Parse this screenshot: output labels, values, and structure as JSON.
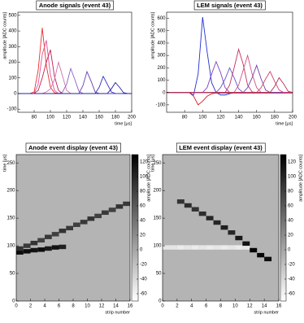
{
  "chart_data": [
    {
      "type": "line",
      "title": "Anode signals (event 43)",
      "xlabel": "time [μs]",
      "ylabel": "amplitude [ADC counts]",
      "x": [
        60,
        65,
        70,
        75,
        80,
        85,
        90,
        95,
        100,
        105,
        110,
        115,
        120,
        125,
        130,
        135,
        140,
        145,
        150,
        155,
        160,
        165,
        170,
        175,
        180,
        185,
        190,
        195,
        200
      ],
      "series": [
        {
          "color": "#e8302a",
          "values": [
            0,
            0,
            0,
            0,
            10,
            150,
            420,
            180,
            40,
            5,
            0,
            0,
            0,
            0,
            0,
            0,
            0,
            0,
            0,
            0,
            0,
            0,
            0,
            0,
            0,
            0,
            0,
            0,
            0
          ]
        },
        {
          "color": "#e0509a",
          "values": [
            0,
            0,
            0,
            0,
            0,
            60,
            250,
            340,
            120,
            20,
            0,
            0,
            0,
            0,
            0,
            0,
            0,
            0,
            0,
            0,
            0,
            0,
            0,
            0,
            0,
            0,
            0,
            0,
            0
          ]
        },
        {
          "color": "#c02050",
          "values": [
            0,
            0,
            0,
            0,
            0,
            20,
            100,
            200,
            280,
            110,
            20,
            0,
            0,
            0,
            0,
            0,
            0,
            0,
            0,
            0,
            0,
            0,
            0,
            0,
            0,
            0,
            0,
            0,
            0
          ]
        },
        {
          "color": "#d070b0",
          "values": [
            0,
            0,
            0,
            0,
            0,
            0,
            0,
            10,
            30,
            90,
            200,
            110,
            20,
            0,
            0,
            0,
            0,
            0,
            0,
            0,
            0,
            0,
            0,
            0,
            0,
            0,
            0,
            0,
            0
          ]
        },
        {
          "color": "#9060c0",
          "values": [
            0,
            0,
            0,
            0,
            0,
            0,
            0,
            0,
            0,
            0,
            0,
            10,
            60,
            160,
            90,
            15,
            0,
            0,
            0,
            0,
            0,
            0,
            0,
            0,
            0,
            0,
            0,
            0,
            0
          ]
        },
        {
          "color": "#6040b0",
          "values": [
            0,
            0,
            0,
            0,
            0,
            0,
            0,
            0,
            0,
            0,
            0,
            0,
            0,
            0,
            0,
            0,
            50,
            140,
            80,
            10,
            0,
            0,
            0,
            0,
            0,
            0,
            0,
            0,
            0
          ]
        },
        {
          "color": "#3030c0",
          "values": [
            0,
            0,
            0,
            0,
            0,
            0,
            0,
            0,
            0,
            0,
            0,
            0,
            0,
            0,
            0,
            0,
            0,
            0,
            0,
            0,
            40,
            110,
            60,
            10,
            0,
            0,
            0,
            0,
            0
          ]
        },
        {
          "color": "#2020a0",
          "values": [
            0,
            0,
            0,
            0,
            0,
            0,
            0,
            0,
            0,
            0,
            0,
            0,
            0,
            0,
            0,
            0,
            0,
            0,
            0,
            0,
            0,
            0,
            0,
            30,
            70,
            40,
            5,
            0,
            0
          ]
        }
      ],
      "xlim": [
        60,
        200
      ],
      "ylim": [
        -120,
        520
      ],
      "xticks": [
        80,
        100,
        120,
        140,
        160,
        180,
        200
      ],
      "yticks": [
        -100,
        0,
        100,
        200,
        300,
        400,
        500
      ]
    },
    {
      "type": "line",
      "title": "LEM signals (event 43)",
      "xlabel": "time [μs]",
      "ylabel": "amplitude [ADC counts]",
      "x": [
        60,
        65,
        70,
        75,
        80,
        85,
        90,
        95,
        100,
        105,
        110,
        115,
        120,
        125,
        130,
        135,
        140,
        145,
        150,
        155,
        160,
        165,
        170,
        175,
        180,
        185,
        190,
        195,
        200
      ],
      "series": [
        {
          "color": "#2030d0",
          "values": [
            0,
            0,
            0,
            0,
            0,
            0,
            -20,
            150,
            610,
            330,
            80,
            0,
            -20,
            -20,
            -10,
            0,
            0,
            0,
            0,
            0,
            0,
            0,
            0,
            0,
            0,
            0,
            0,
            0,
            0
          ]
        },
        {
          "color": "#d02020",
          "values": [
            0,
            0,
            0,
            0,
            0,
            0,
            -30,
            -100,
            -70,
            -30,
            -10,
            -5,
            -5,
            -5,
            -5,
            -5,
            -5,
            -5,
            -5,
            -5,
            -5,
            -5,
            -5,
            -5,
            -5,
            -5,
            -5,
            -5,
            -5
          ]
        },
        {
          "color": "#8040c0",
          "values": [
            0,
            0,
            0,
            0,
            0,
            0,
            0,
            0,
            0,
            40,
            150,
            250,
            160,
            40,
            0,
            0,
            0,
            0,
            0,
            0,
            0,
            0,
            0,
            0,
            0,
            0,
            0,
            0,
            0
          ]
        },
        {
          "color": "#6050d0",
          "values": [
            0,
            0,
            0,
            0,
            0,
            0,
            0,
            0,
            0,
            0,
            0,
            0,
            40,
            110,
            200,
            120,
            30,
            0,
            0,
            0,
            0,
            0,
            0,
            0,
            0,
            0,
            0,
            0,
            0
          ]
        },
        {
          "color": "#c03060",
          "values": [
            0,
            0,
            0,
            0,
            0,
            0,
            0,
            0,
            0,
            0,
            0,
            0,
            0,
            0,
            60,
            200,
            350,
            230,
            60,
            5,
            0,
            0,
            0,
            0,
            0,
            0,
            0,
            0,
            0
          ]
        },
        {
          "color": "#d05080",
          "values": [
            0,
            0,
            0,
            0,
            0,
            0,
            0,
            0,
            0,
            0,
            0,
            0,
            0,
            0,
            0,
            0,
            60,
            180,
            300,
            150,
            40,
            0,
            0,
            0,
            0,
            0,
            0,
            0,
            0
          ]
        },
        {
          "color": "#7040b0",
          "values": [
            0,
            0,
            0,
            0,
            0,
            0,
            0,
            0,
            0,
            0,
            0,
            0,
            0,
            0,
            0,
            0,
            0,
            0,
            40,
            120,
            220,
            110,
            20,
            0,
            0,
            0,
            0,
            0,
            0
          ]
        },
        {
          "color": "#d04070",
          "values": [
            0,
            0,
            0,
            0,
            0,
            0,
            0,
            0,
            0,
            0,
            0,
            0,
            0,
            0,
            0,
            0,
            0,
            0,
            0,
            0,
            0,
            40,
            110,
            170,
            90,
            20,
            0,
            0,
            0
          ]
        },
        {
          "color": "#b03050",
          "values": [
            0,
            0,
            0,
            0,
            0,
            0,
            0,
            0,
            0,
            0,
            0,
            0,
            0,
            0,
            0,
            0,
            0,
            0,
            0,
            0,
            0,
            0,
            0,
            0,
            50,
            120,
            70,
            10,
            0
          ]
        }
      ],
      "xlim": [
        60,
        200
      ],
      "ylim": [
        -160,
        650
      ],
      "xticks": [
        80,
        100,
        120,
        140,
        160,
        180,
        200
      ],
      "yticks": [
        -100,
        0,
        100,
        200,
        300,
        400,
        500,
        600
      ]
    },
    {
      "type": "heatmap",
      "title": "Anode event display (event 43)",
      "xlabel": "strip number",
      "ylabel": "time [μs]",
      "zlabel": "amplitude [ADC counts]",
      "x": [
        0,
        1,
        2,
        3,
        4,
        5,
        6,
        0,
        1,
        2,
        3,
        4,
        5,
        6,
        7,
        8,
        9,
        10,
        11,
        12,
        13,
        14,
        15
      ],
      "y": [
        88,
        90,
        92,
        93,
        95,
        97,
        98,
        95,
        100,
        105,
        110,
        116,
        121,
        127,
        132,
        138,
        143,
        149,
        154,
        160,
        165,
        171,
        176
      ],
      "values": [
        120,
        120,
        115,
        120,
        110,
        115,
        105,
        90,
        85,
        90,
        80,
        85,
        80,
        90,
        85,
        80,
        85,
        90,
        80,
        85,
        80,
        90,
        85
      ],
      "xlim": [
        0,
        16
      ],
      "ylim": [
        0,
        265
      ],
      "zlim": [
        -70,
        130
      ],
      "xticks": [
        0,
        2,
        4,
        6,
        8,
        10,
        12,
        14,
        16
      ],
      "yticks": [
        0,
        50,
        100,
        150,
        200,
        250
      ],
      "zticks": [
        -60,
        -40,
        -20,
        0,
        20,
        40,
        60,
        80,
        100,
        120
      ]
    },
    {
      "type": "heatmap",
      "title": "LEM event display (event 43)",
      "xlabel": "strip number",
      "ylabel": "time [μs]",
      "zlabel": "amplitude [ADC counts]",
      "x": [
        0,
        1,
        2,
        3,
        4,
        5,
        6,
        7,
        8,
        9,
        10,
        11,
        2,
        3,
        4,
        5,
        6,
        7,
        8,
        9,
        10,
        11,
        12,
        13,
        14
      ],
      "y": [
        97,
        97,
        97,
        97,
        97,
        97,
        97,
        97,
        97,
        97,
        97,
        97,
        180,
        173,
        166,
        158,
        150,
        142,
        133,
        124,
        114,
        104,
        92,
        83,
        76
      ],
      "values": [
        -50,
        -50,
        -55,
        -50,
        -55,
        -50,
        -55,
        -50,
        -55,
        -50,
        -55,
        -50,
        90,
        95,
        90,
        95,
        100,
        100,
        105,
        100,
        110,
        115,
        125,
        125,
        120
      ],
      "xlim": [
        0,
        16
      ],
      "ylim": [
        0,
        265
      ],
      "zlim": [
        -70,
        130
      ],
      "xticks": [
        0,
        2,
        4,
        6,
        8,
        10,
        12,
        14,
        16
      ],
      "yticks": [
        0,
        50,
        100,
        150,
        200,
        250
      ],
      "zticks": [
        -60,
        -40,
        -20,
        0,
        20,
        40,
        60,
        80,
        100,
        120
      ]
    }
  ]
}
